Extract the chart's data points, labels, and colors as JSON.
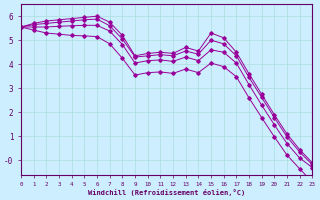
{
  "xlabel": "Windchill (Refroidissement éolien,°C)",
  "bg_color": "#cceeff",
  "line_color": "#990099",
  "grid_color": "#aadddd",
  "axis_color": "#660066",
  "xlim": [
    0,
    23
  ],
  "ylim": [
    -0.6,
    6.5
  ],
  "lines": [
    [
      5.55,
      5.7,
      5.8,
      5.85,
      5.9,
      5.95,
      6.0,
      5.75,
      5.2,
      4.35,
      4.45,
      4.5,
      4.45,
      4.7,
      4.55,
      5.3,
      5.1,
      4.5,
      3.6,
      2.75,
      1.9,
      1.1,
      0.45,
      -0.1
    ],
    [
      5.55,
      5.65,
      5.7,
      5.75,
      5.8,
      5.85,
      5.88,
      5.6,
      5.05,
      4.3,
      4.35,
      4.4,
      4.35,
      4.55,
      4.42,
      5.0,
      4.85,
      4.35,
      3.45,
      2.62,
      1.78,
      0.98,
      0.35,
      -0.18
    ],
    [
      5.55,
      5.55,
      5.55,
      5.58,
      5.6,
      5.62,
      5.62,
      5.38,
      4.82,
      4.05,
      4.15,
      4.18,
      4.12,
      4.3,
      4.15,
      4.6,
      4.5,
      4.05,
      3.15,
      2.3,
      1.48,
      0.7,
      0.1,
      -0.3
    ],
    [
      5.55,
      5.42,
      5.3,
      5.25,
      5.2,
      5.18,
      5.15,
      4.85,
      4.25,
      3.55,
      3.65,
      3.68,
      3.62,
      3.8,
      3.65,
      4.05,
      3.9,
      3.48,
      2.6,
      1.78,
      0.98,
      0.22,
      -0.35,
      -0.9
    ]
  ]
}
